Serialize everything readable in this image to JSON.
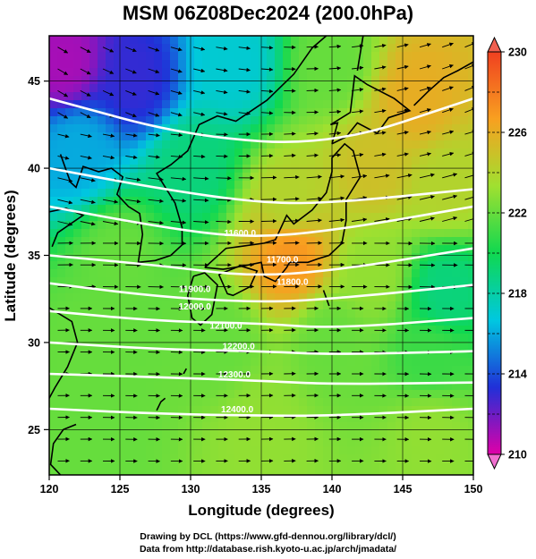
{
  "title": "MSM 06Z08Dec2024 (200.0hPa)",
  "credits": {
    "line1": "Drawing by DCL (https://www.gfd-dennou.org/library/dcl/)",
    "line2": "Data from http://database.rish.kyoto-u.ac.jp/arch/jmadata/"
  },
  "chart_data": {
    "type": "heatmap",
    "title": "MSM 06Z08Dec2024 (200.0hPa)",
    "xlabel": "Longitude (degrees)",
    "ylabel": "Latitude  (degrees)",
    "xlim": [
      120,
      150
    ],
    "ylim": [
      22.4,
      47.6
    ],
    "xticks": [
      120,
      125,
      130,
      135,
      140,
      145,
      150
    ],
    "yticks": [
      25,
      30,
      35,
      40,
      45
    ],
    "grid": true,
    "colorbar": {
      "min": 210,
      "max": 230,
      "ticks": [
        210,
        214,
        218,
        222,
        226,
        230
      ],
      "colors": [
        "#e000a8",
        "#2030d8",
        "#00c8e0",
        "#10d850",
        "#a0e030",
        "#f8a020",
        "#f04020"
      ]
    },
    "shaded_field_samples": [
      {
        "lon": 121,
        "lat": 46,
        "value": 211
      },
      {
        "lon": 126,
        "lat": 45,
        "value": 213
      },
      {
        "lon": 133,
        "lat": 46,
        "value": 217
      },
      {
        "lon": 140,
        "lat": 46,
        "value": 222
      },
      {
        "lon": 146,
        "lat": 44,
        "value": 226
      },
      {
        "lon": 122,
        "lat": 41,
        "value": 216
      },
      {
        "lon": 130,
        "lat": 40,
        "value": 219
      },
      {
        "lon": 137,
        "lat": 38,
        "value": 224
      },
      {
        "lon": 143,
        "lat": 40,
        "value": 225
      },
      {
        "lon": 148,
        "lat": 39,
        "value": 224
      },
      {
        "lon": 125,
        "lat": 35,
        "value": 222
      },
      {
        "lon": 137,
        "lat": 35,
        "value": 227
      },
      {
        "lon": 143,
        "lat": 34,
        "value": 223
      },
      {
        "lon": 148,
        "lat": 33,
        "value": 219
      },
      {
        "lon": 123,
        "lat": 30,
        "value": 222
      },
      {
        "lon": 132,
        "lat": 30,
        "value": 222
      },
      {
        "lon": 140,
        "lat": 30,
        "value": 222
      },
      {
        "lon": 147,
        "lat": 29,
        "value": 221
      },
      {
        "lon": 123,
        "lat": 25,
        "value": 222
      },
      {
        "lon": 135,
        "lat": 25,
        "value": 223
      },
      {
        "lon": 147,
        "lat": 25,
        "value": 223
      }
    ],
    "contour_series": [
      {
        "name": "11600.0",
        "lon": [
          120,
          130,
          140,
          150
        ],
        "lat": [
          44.0,
          41.8,
          41.3,
          44.0
        ]
      },
      {
        "name": "11700.0",
        "lon": [
          120,
          128,
          135,
          140,
          150
        ],
        "lat": [
          40.0,
          38.8,
          38.0,
          38.0,
          38.8
        ]
      },
      {
        "name": "11800.0",
        "lon": [
          120,
          128,
          134,
          140,
          150
        ],
        "lat": [
          37.8,
          36.6,
          36.0,
          36.4,
          37.8
        ]
      },
      {
        "name": "11900.0",
        "lon": [
          120,
          128,
          134,
          140,
          150
        ],
        "lat": [
          35.0,
          34.4,
          33.8,
          34.1,
          35.4
        ]
      },
      {
        "name": "12000.0",
        "lon": [
          120,
          128,
          135,
          140,
          150
        ],
        "lat": [
          33.4,
          32.6,
          32.3,
          32.5,
          33.3
        ]
      },
      {
        "name": "12100.0",
        "lon": [
          120,
          128,
          135,
          140,
          150
        ],
        "lat": [
          31.8,
          31.2,
          31.1,
          30.8,
          31.4
        ]
      },
      {
        "name": "12200.0",
        "lon": [
          120,
          128,
          135,
          140,
          150
        ],
        "lat": [
          30.0,
          29.6,
          29.5,
          29.3,
          29.5
        ]
      },
      {
        "name": "12300.0",
        "lon": [
          120,
          128,
          135,
          140,
          150
        ],
        "lat": [
          28.2,
          28.0,
          27.8,
          27.6,
          27.7
        ]
      },
      {
        "name": "12400.0",
        "lon": [
          120,
          128,
          135,
          140,
          150
        ],
        "lat": [
          26.2,
          25.9,
          25.8,
          25.8,
          26.2
        ]
      }
    ],
    "contour_labels": [
      {
        "text": "11600.0",
        "lon": 133.5,
        "lat": 36.1
      },
      {
        "text": "11700.0",
        "lon": 136.5,
        "lat": 34.6
      },
      {
        "text": "11800.0",
        "lon": 137.2,
        "lat": 33.3
      },
      {
        "text": "11900.0",
        "lon": 130.3,
        "lat": 32.9
      },
      {
        "text": "12000.0",
        "lon": 130.3,
        "lat": 31.9
      },
      {
        "text": "12100.0",
        "lon": 132.5,
        "lat": 30.8
      },
      {
        "text": "12200.0",
        "lon": 133.4,
        "lat": 29.6
      },
      {
        "text": "12300.0",
        "lon": 133.1,
        "lat": 28.0
      },
      {
        "text": "12400.0",
        "lon": 133.3,
        "lat": 26.0
      }
    ],
    "wind_vectors": "westerly flow; northwesterly over north-west of domain, southwesterly over north-east"
  }
}
